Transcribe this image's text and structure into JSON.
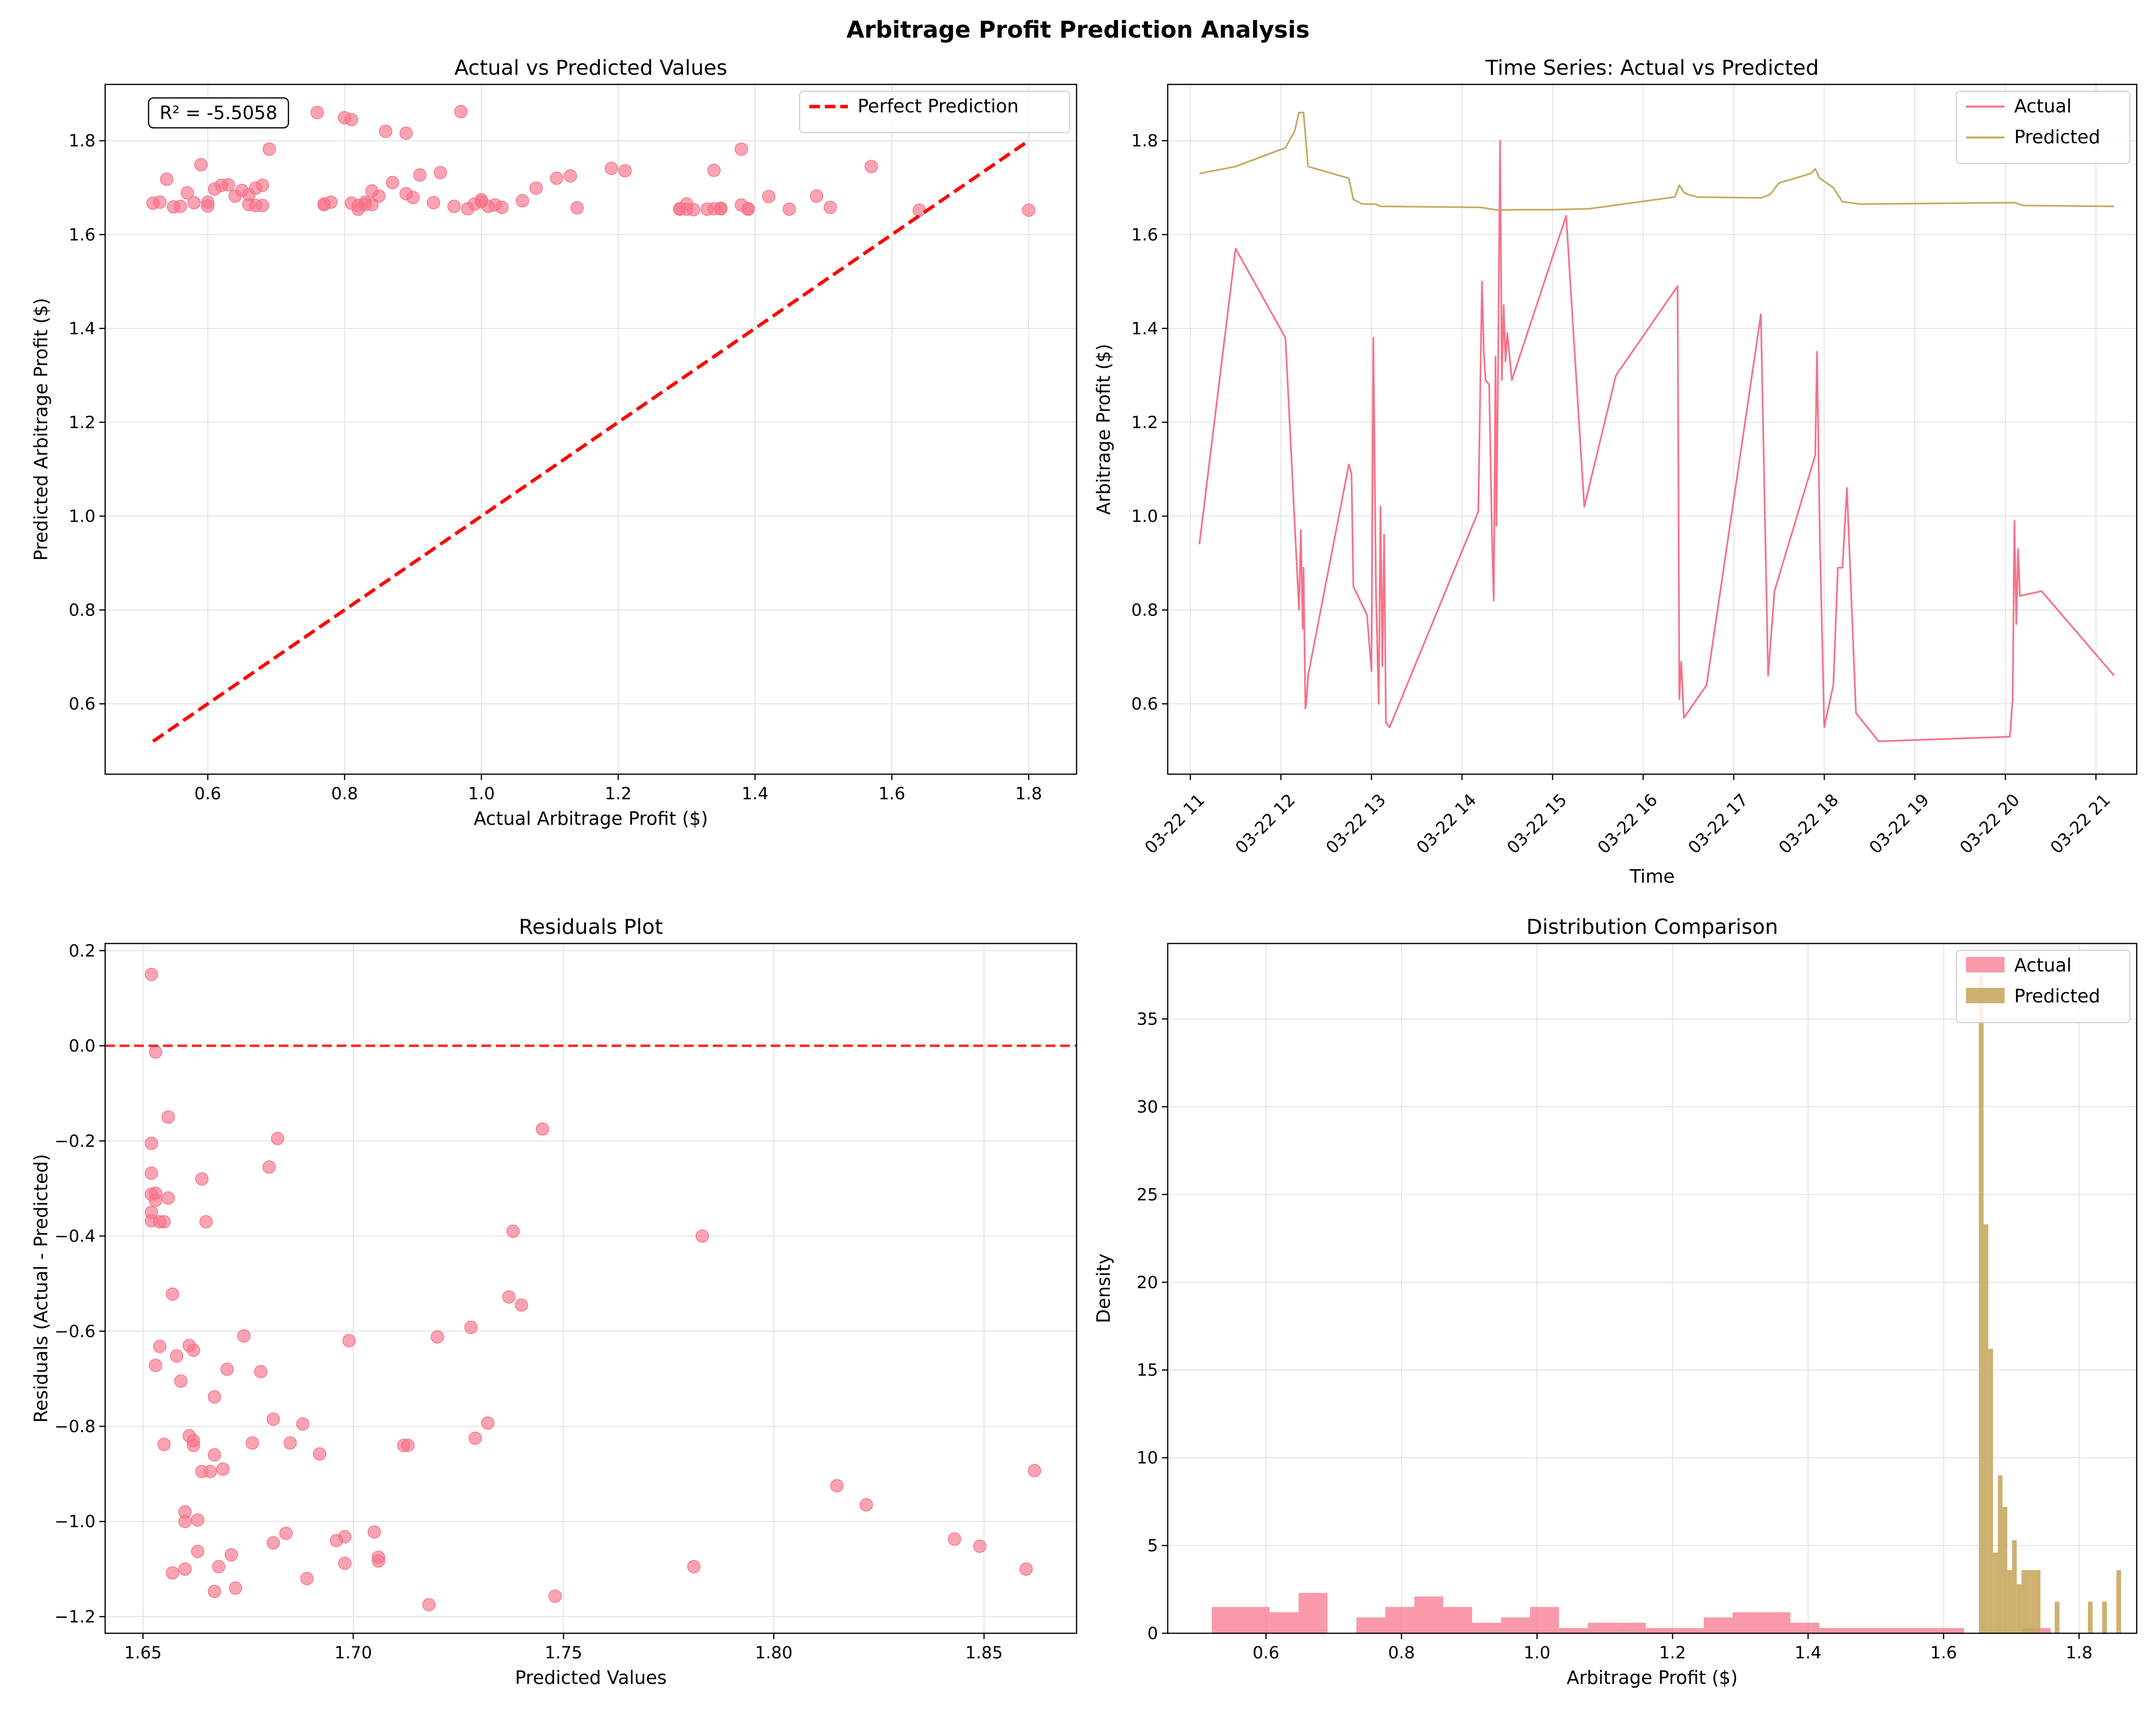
{
  "figure": {
    "title": "Arbitrage Profit Prediction Analysis"
  },
  "colors": {
    "actual": "#f77189",
    "predicted": "#c8a962",
    "reference": "#ff0000"
  },
  "chart_data": [
    {
      "type": "scatter",
      "title": "Actual vs Predicted Values",
      "xlabel": "Actual Arbitrage Profit ($)",
      "ylabel": "Predicted Arbitrage Profit ($)",
      "xlim": [
        0.45,
        1.87
      ],
      "ylim": [
        0.45,
        1.92
      ],
      "xticks": [
        0.6,
        0.8,
        1.0,
        1.2,
        1.4,
        1.6,
        1.8
      ],
      "xticklabels": [
        "0.6",
        "0.8",
        "1.0",
        "1.2",
        "1.4",
        "1.6",
        "1.8"
      ],
      "yticks": [
        0.6,
        0.8,
        1.0,
        1.2,
        1.4,
        1.6,
        1.8
      ],
      "yticklabels": [
        "0.6",
        "0.8",
        "1.0",
        "1.2",
        "1.4",
        "1.6",
        "1.8"
      ],
      "grid": true,
      "annotation": "R² = -5.5058",
      "legend": {
        "position": "top-right",
        "entries": [
          "Perfect Prediction"
        ]
      },
      "reference_line": {
        "name": "Perfect Prediction",
        "x": [
          0.52,
          1.8
        ],
        "y": [
          0.52,
          1.8
        ]
      },
      "points": {
        "x": [
          0.52,
          0.53,
          0.55,
          0.54,
          0.56,
          0.57,
          0.58,
          0.59,
          0.6,
          0.6,
          0.61,
          0.62,
          0.63,
          0.64,
          0.65,
          0.66,
          0.66,
          0.67,
          0.67,
          0.68,
          0.68,
          0.69,
          0.76,
          0.77,
          0.77,
          0.78,
          0.8,
          0.81,
          0.81,
          0.82,
          0.82,
          0.83,
          0.83,
          0.84,
          0.84,
          0.85,
          0.86,
          0.87,
          0.89,
          0.89,
          0.9,
          0.91,
          0.93,
          0.94,
          0.96,
          0.97,
          0.98,
          0.99,
          1.0,
          1.0,
          1.01,
          1.02,
          1.03,
          1.06,
          1.08,
          1.11,
          1.13,
          1.14,
          1.19,
          1.21,
          1.29,
          1.29,
          1.3,
          1.3,
          1.31,
          1.33,
          1.34,
          1.34,
          1.35,
          1.35,
          1.38,
          1.38,
          1.39,
          1.39,
          1.42,
          1.45,
          1.49,
          1.51,
          1.57,
          1.64,
          1.8
        ],
        "y": [
          1.667,
          1.669,
          1.659,
          1.718,
          1.66,
          1.689,
          1.668,
          1.749,
          1.669,
          1.661,
          1.697,
          1.705,
          1.706,
          1.682,
          1.694,
          1.685,
          1.664,
          1.662,
          1.699,
          1.662,
          1.705,
          1.782,
          1.86,
          1.665,
          1.664,
          1.669,
          1.849,
          1.845,
          1.667,
          1.662,
          1.654,
          1.669,
          1.664,
          1.693,
          1.664,
          1.682,
          1.82,
          1.711,
          1.816,
          1.687,
          1.679,
          1.727,
          1.668,
          1.732,
          1.66,
          1.862,
          1.655,
          1.665,
          1.67,
          1.674,
          1.66,
          1.663,
          1.658,
          1.672,
          1.699,
          1.72,
          1.725,
          1.657,
          1.741,
          1.736,
          1.655,
          1.654,
          1.665,
          1.654,
          1.653,
          1.654,
          1.655,
          1.737,
          1.656,
          1.655,
          1.782,
          1.663,
          1.655,
          1.654,
          1.681,
          1.654,
          1.682,
          1.658,
          1.745,
          1.652,
          1.652
        ]
      }
    },
    {
      "type": "line",
      "title": "Time Series: Actual vs Predicted",
      "xlabel": "Time",
      "ylabel": "Arbitrage Profit ($)",
      "x_unit": "hours on 03-22",
      "xlim": [
        10.75,
        21.45
      ],
      "ylim": [
        0.45,
        1.92
      ],
      "xticks": [
        11,
        12,
        13,
        14,
        15,
        16,
        17,
        18,
        19,
        20,
        21
      ],
      "xticklabels": [
        "03-22 11",
        "03-22 12",
        "03-22 13",
        "03-22 14",
        "03-22 15",
        "03-22 16",
        "03-22 17",
        "03-22 18",
        "03-22 19",
        "03-22 20",
        "03-22 21"
      ],
      "yticks": [
        0.6,
        0.8,
        1.0,
        1.2,
        1.4,
        1.6,
        1.8
      ],
      "yticklabels": [
        "0.6",
        "0.8",
        "1.0",
        "1.2",
        "1.4",
        "1.6",
        "1.8"
      ],
      "grid": true,
      "legend": {
        "position": "top-right",
        "entries": [
          "Actual",
          "Predicted"
        ]
      },
      "series": [
        {
          "name": "Actual",
          "x": [
            11.1,
            11.5,
            12.05,
            12.2,
            12.22,
            12.24,
            12.25,
            12.27,
            12.28,
            12.3,
            12.75,
            12.78,
            12.8,
            12.95,
            13.0,
            13.02,
            13.05,
            13.08,
            13.1,
            13.12,
            13.14,
            13.16,
            13.2,
            14.18,
            14.22,
            14.24,
            14.26,
            14.3,
            14.33,
            14.35,
            14.37,
            14.38,
            14.4,
            14.42,
            14.44,
            14.46,
            14.48,
            14.5,
            14.55,
            15.15,
            15.35,
            15.7,
            16.38,
            16.4,
            16.42,
            16.45,
            16.7,
            17.3,
            17.38,
            17.45,
            17.9,
            17.92,
            17.95,
            18.0,
            18.1,
            18.15,
            18.2,
            18.25,
            18.35,
            18.6,
            20.05,
            20.08,
            20.1,
            20.12,
            20.14,
            20.16,
            20.4,
            21.2
          ],
          "y": [
            0.94,
            1.57,
            1.38,
            0.8,
            0.97,
            0.76,
            0.89,
            0.59,
            0.6,
            0.66,
            1.11,
            1.09,
            0.85,
            0.79,
            0.67,
            1.38,
            0.84,
            0.6,
            1.02,
            0.68,
            0.96,
            0.56,
            0.55,
            1.01,
            1.5,
            1.35,
            1.29,
            1.28,
            0.96,
            0.82,
            1.34,
            0.98,
            1.35,
            1.8,
            1.29,
            1.45,
            1.33,
            1.39,
            1.29,
            1.64,
            1.02,
            1.3,
            1.49,
            0.61,
            0.69,
            0.57,
            0.64,
            1.43,
            0.66,
            0.84,
            1.13,
            1.35,
            0.96,
            0.55,
            0.64,
            0.89,
            0.89,
            1.06,
            0.58,
            0.52,
            0.53,
            0.61,
            0.99,
            0.77,
            0.93,
            0.83,
            0.84,
            0.66
          ]
        },
        {
          "name": "Predicted",
          "x": [
            11.1,
            11.5,
            12.05,
            12.15,
            12.2,
            12.25,
            12.3,
            12.75,
            12.8,
            12.9,
            13.05,
            13.1,
            13.2,
            14.2,
            14.4,
            14.6,
            15.0,
            15.4,
            16.35,
            16.4,
            16.45,
            16.5,
            16.6,
            17.3,
            17.4,
            17.5,
            17.85,
            17.9,
            17.95,
            18.1,
            18.2,
            18.4,
            20.1,
            20.2,
            21.2
          ],
          "y": [
            1.73,
            1.745,
            1.785,
            1.82,
            1.86,
            1.86,
            1.745,
            1.72,
            1.675,
            1.665,
            1.665,
            1.66,
            1.66,
            1.658,
            1.652,
            1.653,
            1.653,
            1.655,
            1.68,
            1.705,
            1.69,
            1.685,
            1.68,
            1.678,
            1.685,
            1.71,
            1.73,
            1.74,
            1.72,
            1.7,
            1.67,
            1.665,
            1.668,
            1.662,
            1.66
          ]
        }
      ]
    },
    {
      "type": "scatter",
      "title": "Residuals Plot",
      "xlabel": "Predicted Values",
      "ylabel": "Residuals (Actual - Predicted)",
      "xlim": [
        1.641,
        1.872
      ],
      "ylim": [
        -1.235,
        0.215
      ],
      "xticks": [
        1.65,
        1.7,
        1.75,
        1.8,
        1.85
      ],
      "xticklabels": [
        "1.65",
        "1.70",
        "1.75",
        "1.80",
        "1.85"
      ],
      "yticks": [
        0.2,
        0.0,
        -0.2,
        -0.4,
        -0.6,
        -0.8,
        -1.0,
        -1.2
      ],
      "yticklabels": [
        "0.2",
        "0.0",
        "−0.2",
        "−0.4",
        "−0.6",
        "−0.8",
        "−1.0",
        "−1.2"
      ],
      "grid": true,
      "reference_line": {
        "y": 0.0,
        "style": "dashed"
      },
      "points": {
        "x": [
          1.652,
          1.653,
          1.652,
          1.652,
          1.652,
          1.653,
          1.652,
          1.652,
          1.653,
          1.654,
          1.655,
          1.653,
          1.656,
          1.656,
          1.657,
          1.657,
          1.658,
          1.659,
          1.66,
          1.66,
          1.661,
          1.661,
          1.662,
          1.662,
          1.663,
          1.663,
          1.664,
          1.665,
          1.666,
          1.667,
          1.667,
          1.668,
          1.669,
          1.67,
          1.671,
          1.674,
          1.676,
          1.678,
          1.68,
          1.681,
          1.681,
          1.682,
          1.684,
          1.685,
          1.688,
          1.689,
          1.692,
          1.696,
          1.698,
          1.699,
          1.705,
          1.706,
          1.706,
          1.712,
          1.718,
          1.72,
          1.728,
          1.729,
          1.732,
          1.737,
          1.738,
          1.74,
          1.745,
          1.748,
          1.781,
          1.783,
          1.815,
          1.822,
          1.843,
          1.849,
          1.86,
          1.862,
          1.664,
          1.66,
          1.662,
          1.655,
          1.654,
          1.672,
          1.698,
          1.713,
          1.667
        ],
        "y": [
          0.15,
          -0.013,
          -0.205,
          -0.268,
          -0.312,
          -0.325,
          -0.35,
          -0.368,
          -0.31,
          -0.37,
          -0.37,
          -0.672,
          -0.15,
          -0.32,
          -0.522,
          -1.108,
          -0.652,
          -0.705,
          -1.0,
          -0.98,
          -0.82,
          -0.63,
          -0.83,
          -0.84,
          -1.063,
          -0.997,
          -0.895,
          -0.37,
          -0.895,
          -0.738,
          -1.147,
          -1.095,
          -0.89,
          -0.68,
          -1.07,
          -0.61,
          -0.835,
          -0.685,
          -0.255,
          -0.785,
          -1.045,
          -0.195,
          -1.025,
          -0.835,
          -0.795,
          -1.12,
          -0.858,
          -1.04,
          -1.088,
          -0.62,
          -1.022,
          -1.075,
          -1.083,
          -0.84,
          -1.175,
          -0.612,
          -0.592,
          -0.825,
          -0.793,
          -0.528,
          -0.39,
          -0.545,
          -0.175,
          -1.157,
          -1.095,
          -0.4,
          -0.925,
          -0.965,
          -1.037,
          -1.052,
          -1.1,
          -0.893,
          -0.28,
          -1.1,
          -0.64,
          -0.838,
          -0.632,
          -1.14,
          -1.032,
          -0.84,
          -0.86
        ]
      }
    },
    {
      "type": "bar",
      "subtype": "histogram",
      "title": "Distribution Comparison",
      "xlabel": "Arbitrage Profit ($)",
      "ylabel": "Density",
      "xlim": [
        0.455,
        1.885
      ],
      "ylim": [
        0,
        39.3
      ],
      "xticks": [
        0.6,
        0.8,
        1.0,
        1.2,
        1.4,
        1.6,
        1.8
      ],
      "xticklabels": [
        "0.6",
        "0.8",
        "1.0",
        "1.2",
        "1.4",
        "1.6",
        "1.8"
      ],
      "yticks": [
        0,
        5,
        10,
        15,
        20,
        25,
        30,
        35
      ],
      "yticklabels": [
        "0",
        "5",
        "10",
        "15",
        "20",
        "25",
        "30",
        "35"
      ],
      "grid": true,
      "legend": {
        "position": "top-right",
        "entries": [
          "Actual",
          "Predicted"
        ]
      },
      "series": [
        {
          "name": "Actual",
          "bin_start": 0.52,
          "bin_width": 0.0427,
          "values": [
            1.5,
            1.5,
            1.2,
            2.3,
            0.0,
            0.9,
            1.5,
            2.1,
            1.5,
            0.6,
            0.9,
            1.5,
            0.3,
            0.6,
            0.6,
            0.3,
            0.3,
            0.9,
            1.2,
            1.2,
            0.6,
            0.3,
            0.3,
            0.3,
            0.3,
            0.3,
            0.0,
            0.0,
            0.3,
            0.0
          ]
        },
        {
          "name": "Predicted",
          "bin_start": 1.652,
          "bin_width": 0.007,
          "values": [
            37.5,
            23.3,
            16.2,
            4.6,
            9.0,
            7.2,
            3.6,
            5.3,
            2.8,
            3.6,
            3.6,
            3.6,
            3.6,
            0.0,
            0.0,
            0.0,
            1.8,
            0.0,
            0.0,
            0.0,
            0.0,
            0.0,
            0.0,
            1.8,
            0.0,
            0.0,
            1.8,
            0.0,
            0.0,
            3.6
          ]
        }
      ]
    }
  ]
}
